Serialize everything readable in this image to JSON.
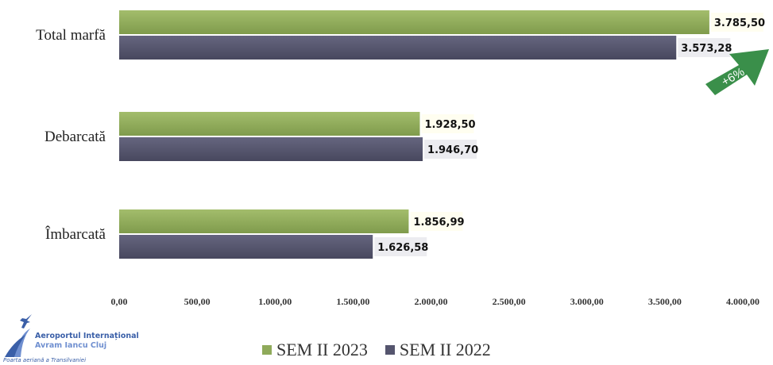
{
  "chart_data": {
    "type": "bar",
    "orientation": "horizontal",
    "categories": [
      "Total marfă",
      "Debarcată",
      "Îmbarcată"
    ],
    "series": [
      {
        "name": "SEM II 2023",
        "color": "#8faa5a",
        "values": [
          3785.5,
          1928.5,
          1856.99
        ],
        "labels": [
          "3.785,50",
          "1.928,50",
          "1.856,99"
        ]
      },
      {
        "name": "SEM II 2022",
        "color": "#55556e",
        "values": [
          3573.28,
          1946.7,
          1626.58
        ],
        "labels": [
          "3.573,28",
          "1.946,70",
          "1.626,58"
        ]
      }
    ],
    "xlim": [
      0,
      4000
    ],
    "xticks": [
      0,
      500,
      1000,
      1500,
      2000,
      2500,
      3000,
      3500,
      4000
    ],
    "xtick_labels": [
      "0,00",
      "500,00",
      "1.000,00",
      "1.500,00",
      "2.000,00",
      "2.500,00",
      "3.000,00",
      "3.500,00",
      "4.000,00"
    ],
    "grid": false,
    "legend_position": "bottom",
    "annotation": {
      "text": "+6%",
      "color": "#3a8f4a"
    }
  },
  "logo": {
    "line1": "Aeroportul Internațional",
    "line2": "Avram Iancu Cluj",
    "line3": "Poarta aeriană a Transilvaniei"
  }
}
